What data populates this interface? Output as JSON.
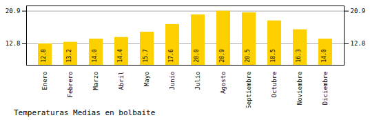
{
  "chart_data": {
    "type": "bar",
    "title": "Temperaturas Medias en bolbaite",
    "categories": [
      "Enero",
      "Febrero",
      "Marzo",
      "Abril",
      "Mayo",
      "Junio",
      "Julio",
      "Agosto",
      "Septiembre",
      "Octubre",
      "Noviembre",
      "Diciembre"
    ],
    "values": [
      12.8,
      13.2,
      14.0,
      14.4,
      15.7,
      17.6,
      20.0,
      20.9,
      20.5,
      18.5,
      16.3,
      14.0
    ],
    "value_labels": [
      "12.8",
      "13.2",
      "14.0",
      "14.4",
      "15.7",
      "17.6",
      "20.0",
      "20.9",
      "20.5",
      "18.5",
      "16.3",
      "14.0"
    ],
    "color": "#FFD000",
    "ylim": [
      7.5,
      22.2
    ],
    "yticks": [
      12.8,
      20.9
    ],
    "grid": true,
    "data_labels": true
  }
}
